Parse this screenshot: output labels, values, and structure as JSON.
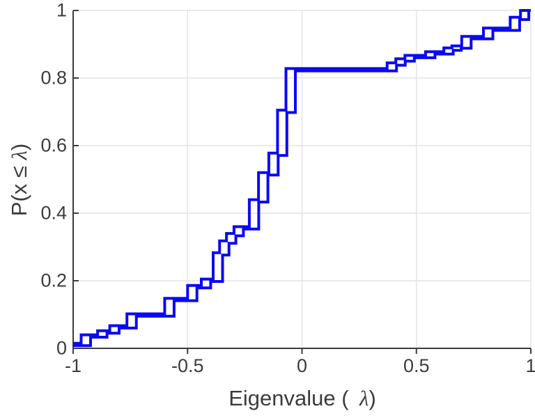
{
  "figure": {
    "background_color": "#ffffff"
  },
  "chart_data": {
    "type": "line",
    "subtype": "empirical-cdf-staircase",
    "title": "",
    "xlabel": {
      "prefix": "Eigenvalue (",
      "lambda": "  λ",
      "suffix": ")"
    },
    "ylabel": {
      "prefix": "P(x ≤ ",
      "lambda": "λ",
      "suffix": ")"
    },
    "xlim": [
      -1,
      1
    ],
    "ylim": [
      0,
      1
    ],
    "grid": true,
    "legend_position": "none",
    "line_color": "#0a0af0",
    "line_width": 4,
    "axis_color": "#3c3c3c",
    "grid_color": "#e3e3e3",
    "x_ticks": {
      "values": [
        -1,
        -0.5,
        0,
        0.5,
        1
      ],
      "labels": [
        "-1",
        "-0.5",
        "0",
        "0.5",
        "1"
      ]
    },
    "y_ticks": {
      "values": [
        0,
        0.2,
        0.4,
        0.6,
        0.8,
        1
      ],
      "labels": [
        "0",
        "0.2",
        "0.4",
        "0.6",
        "0.8",
        "1"
      ]
    },
    "series": [
      {
        "name": "ecdf-eigenvalues-1",
        "start_x": -1.0,
        "start_y": 0.015,
        "end_x": 1.0,
        "jumps": [
          [
            -0.965,
            0.04
          ],
          [
            -0.893,
            0.052
          ],
          [
            -0.84,
            0.067
          ],
          [
            -0.765,
            0.102
          ],
          [
            -0.6,
            0.148
          ],
          [
            -0.5,
            0.186
          ],
          [
            -0.44,
            0.205
          ],
          [
            -0.388,
            0.283
          ],
          [
            -0.36,
            0.318
          ],
          [
            -0.33,
            0.34
          ],
          [
            -0.297,
            0.36
          ],
          [
            -0.23,
            0.44
          ],
          [
            -0.19,
            0.52
          ],
          [
            -0.145,
            0.578
          ],
          [
            -0.107,
            0.705
          ],
          [
            -0.07,
            0.828
          ],
          [
            0.372,
            0.845
          ],
          [
            0.41,
            0.857
          ],
          [
            0.45,
            0.867
          ],
          [
            0.54,
            0.878
          ],
          [
            0.62,
            0.889
          ],
          [
            0.655,
            0.895
          ],
          [
            0.698,
            0.923
          ],
          [
            0.793,
            0.948
          ],
          [
            0.91,
            0.98
          ],
          [
            0.955,
            1.0
          ]
        ]
      },
      {
        "name": "ecdf-eigenvalues-2",
        "start_x": -1.0,
        "start_y": 0.008,
        "end_x": 1.0,
        "jumps": [
          [
            -0.924,
            0.033
          ],
          [
            -0.852,
            0.045
          ],
          [
            -0.799,
            0.06
          ],
          [
            -0.724,
            0.095
          ],
          [
            -0.559,
            0.141
          ],
          [
            -0.459,
            0.179
          ],
          [
            -0.399,
            0.198
          ],
          [
            -0.347,
            0.276
          ],
          [
            -0.319,
            0.311
          ],
          [
            -0.289,
            0.333
          ],
          [
            -0.256,
            0.353
          ],
          [
            -0.189,
            0.433
          ],
          [
            -0.149,
            0.513
          ],
          [
            -0.104,
            0.571
          ],
          [
            -0.066,
            0.698
          ],
          [
            -0.029,
            0.821
          ],
          [
            0.413,
            0.838
          ],
          [
            0.451,
            0.85
          ],
          [
            0.491,
            0.86
          ],
          [
            0.581,
            0.871
          ],
          [
            0.661,
            0.882
          ],
          [
            0.696,
            0.888
          ],
          [
            0.739,
            0.916
          ],
          [
            0.834,
            0.941
          ],
          [
            0.951,
            0.973
          ],
          [
            0.991,
            1.0
          ]
        ]
      }
    ]
  }
}
